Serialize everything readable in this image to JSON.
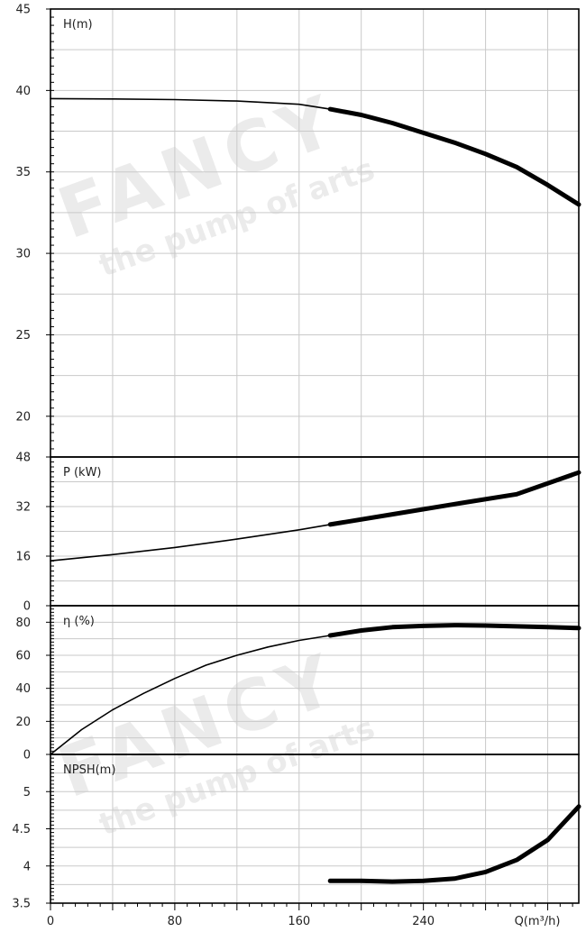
{
  "watermark": {
    "brand": "FANCY",
    "tagline": "the pump of arts"
  },
  "chart_data": {
    "type": "line",
    "x": {
      "label": "Q(m³/h)",
      "range": [
        0,
        340
      ],
      "ticks": [
        0,
        80,
        160,
        240
      ],
      "grid": true
    },
    "panels": [
      {
        "id": "head",
        "label": "H(m)",
        "ylim": [
          17.5,
          45
        ],
        "yticks": [
          20,
          25,
          30,
          35,
          40,
          45
        ],
        "series": [
          {
            "segment": "thin",
            "points": [
              [
                0,
                39.5
              ],
              [
                40,
                39.48
              ],
              [
                80,
                39.44
              ],
              [
                120,
                39.35
              ],
              [
                160,
                39.15
              ],
              [
                180,
                38.85
              ]
            ]
          },
          {
            "segment": "thick",
            "points": [
              [
                180,
                38.85
              ],
              [
                200,
                38.5
              ],
              [
                220,
                38.0
              ],
              [
                240,
                37.4
              ],
              [
                260,
                36.8
              ],
              [
                280,
                36.1
              ],
              [
                300,
                35.3
              ],
              [
                320,
                34.2
              ],
              [
                340,
                33.0
              ]
            ]
          }
        ]
      },
      {
        "id": "power",
        "label": "P (kW)",
        "ylim": [
          0,
          48
        ],
        "yticks": [
          0,
          16,
          32,
          48
        ],
        "series": [
          {
            "segment": "thin",
            "points": [
              [
                0,
                14.5
              ],
              [
                40,
                16.5
              ],
              [
                80,
                18.8
              ],
              [
                120,
                21.5
              ],
              [
                160,
                24.5
              ],
              [
                180,
                26.2
              ]
            ]
          },
          {
            "segment": "thick",
            "points": [
              [
                180,
                26.2
              ],
              [
                220,
                29.5
              ],
              [
                260,
                32.8
              ],
              [
                300,
                36.0
              ],
              [
                340,
                43.0
              ]
            ]
          }
        ]
      },
      {
        "id": "efficiency",
        "label": "η (%)",
        "ylim": [
          0,
          90
        ],
        "yticks": [
          0,
          20,
          40,
          60,
          80
        ],
        "series": [
          {
            "segment": "thin",
            "points": [
              [
                0,
                0
              ],
              [
                20,
                15
              ],
              [
                40,
                27
              ],
              [
                60,
                37
              ],
              [
                80,
                46
              ],
              [
                100,
                54
              ],
              [
                120,
                60
              ],
              [
                140,
                65
              ],
              [
                160,
                69
              ],
              [
                180,
                72
              ]
            ]
          },
          {
            "segment": "thick",
            "points": [
              [
                180,
                72
              ],
              [
                200,
                75
              ],
              [
                220,
                77
              ],
              [
                240,
                77.8
              ],
              [
                260,
                78.2
              ],
              [
                280,
                78.0
              ],
              [
                300,
                77.5
              ],
              [
                320,
                77.0
              ],
              [
                340,
                76.5
              ]
            ]
          }
        ]
      },
      {
        "id": "npsh",
        "label": "NPSH(m)",
        "ylim": [
          3.5,
          5.5
        ],
        "yticks": [
          3.5,
          4,
          4.5,
          5
        ],
        "series": [
          {
            "segment": "thick",
            "points": [
              [
                180,
                3.8
              ],
              [
                200,
                3.8
              ],
              [
                220,
                3.79
              ],
              [
                240,
                3.8
              ],
              [
                260,
                3.83
              ],
              [
                280,
                3.92
              ],
              [
                300,
                4.08
              ],
              [
                320,
                4.35
              ],
              [
                340,
                4.8
              ]
            ]
          }
        ]
      }
    ]
  }
}
